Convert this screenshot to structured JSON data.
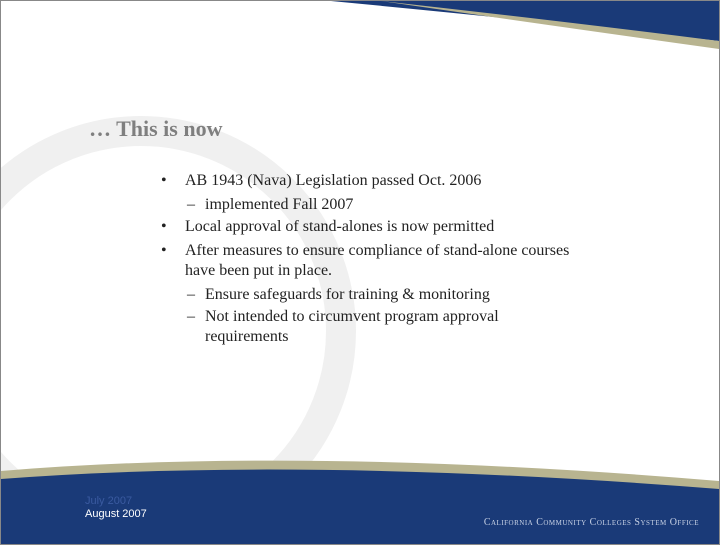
{
  "slide": {
    "title": "… This is now",
    "bullets": [
      {
        "text": "AB 1943 (Nava) Legislation passed Oct. 2006",
        "sub": [
          "implemented Fall 2007"
        ]
      },
      {
        "text": "Local approval of stand-alones is now permitted",
        "sub": []
      },
      {
        "text": "After measures to ensure compliance of stand-alone courses have been put in place.",
        "sub": [
          "Ensure safeguards for training & monitoring",
          "Not intended to circumvent program approval requirements"
        ]
      }
    ],
    "footer": {
      "date1": "July 2007",
      "date2": "August 2007",
      "org": "California Community Colleges System Office"
    }
  }
}
